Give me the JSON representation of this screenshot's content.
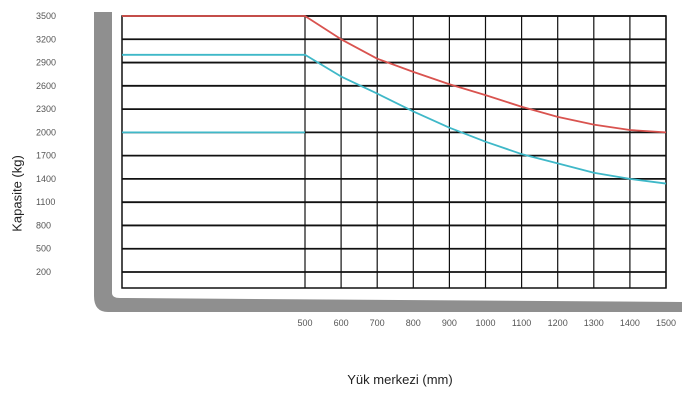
{
  "chart_data": {
    "type": "line",
    "xlabel": "Yük merkezi (mm)",
    "ylabel": "Kapasite (kg)",
    "x_ticks": [
      "500",
      "600",
      "700",
      "800",
      "900",
      "1000",
      "1100",
      "1200",
      "1300",
      "1400",
      "1500"
    ],
    "y_ticks": [
      "3500",
      "3200",
      "2900",
      "2600",
      "2300",
      "2000",
      "1700",
      "1400",
      "1100",
      "800",
      "500",
      "200"
    ],
    "series": [
      {
        "color": "#d9534f",
        "x": [
          0,
          500,
          600,
          700,
          800,
          900,
          1000,
          1100,
          1200,
          1300,
          1400,
          1500
        ],
        "y": [
          3500,
          3500,
          3200,
          2950,
          2780,
          2620,
          2480,
          2330,
          2200,
          2100,
          2030,
          2000
        ]
      },
      {
        "color": "#3fb8c8",
        "x": [
          0,
          500,
          600,
          700,
          800,
          900,
          1000,
          1100,
          1200,
          1300,
          1400,
          1500
        ],
        "y": [
          3000,
          3000,
          2720,
          2500,
          2270,
          2060,
          1880,
          1720,
          1600,
          1480,
          1400,
          1340
        ]
      },
      {
        "color": "#3fb8c8",
        "x": [
          0,
          500
        ],
        "y": [
          2000,
          2000
        ]
      }
    ],
    "colors": {
      "frame": "#8f8f8f",
      "grid": "#111111"
    }
  }
}
